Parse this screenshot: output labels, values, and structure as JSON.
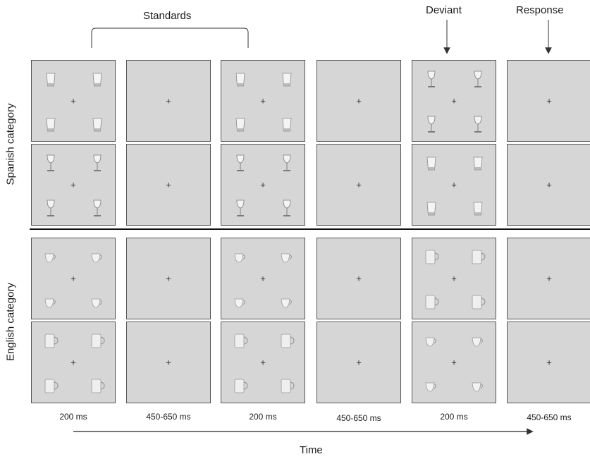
{
  "headers": {
    "standards": "Standards",
    "deviant": "Deviant",
    "response": "Response"
  },
  "row_groups": [
    {
      "label": "Spanish category",
      "rows": [
        [
          "tumbler",
          "blank",
          "tumbler",
          "blank",
          "stemware",
          "blank"
        ],
        [
          "stemware",
          "blank",
          "stemware",
          "blank",
          "tumbler",
          "blank"
        ]
      ]
    },
    {
      "label": "English category",
      "rows": [
        [
          "cup",
          "blank",
          "cup",
          "blank",
          "mug",
          "blank"
        ],
        [
          "mug",
          "blank",
          "mug",
          "blank",
          "cup",
          "blank"
        ]
      ]
    }
  ],
  "fixation": "+",
  "timings": [
    "200 ms",
    "450-650 ms",
    "200 ms",
    "450-650 ms",
    "200 ms",
    "450-650 ms"
  ],
  "time_label": "Time",
  "colors": {
    "panel": "#d6d6d6",
    "border": "#555555",
    "line": "#222222"
  }
}
